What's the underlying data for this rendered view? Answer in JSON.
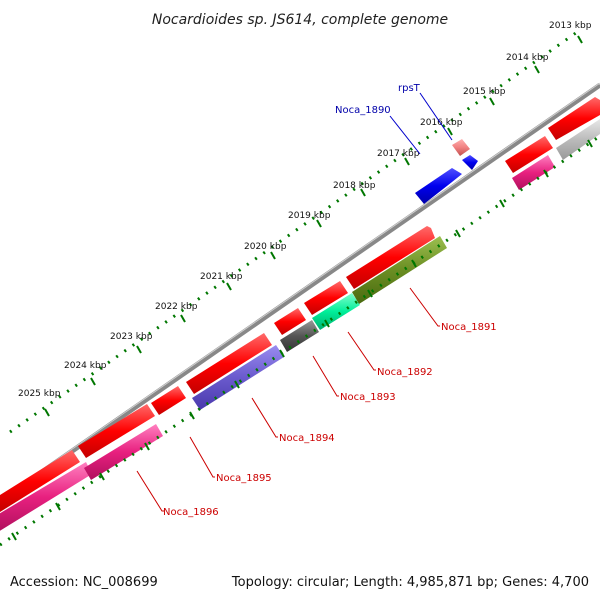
{
  "title": "Nocardioides sp. JS614, complete genome",
  "footer": {
    "accession": "Accession: NC_008699",
    "summary": "Topology: circular; Length: 4,985,871 bp; Genes: 4,700"
  },
  "kbp_labels": [
    "2013 kbp",
    "2014 kbp",
    "2015 kbp",
    "2016 kbp",
    "2017 kbp",
    "2018 kbp",
    "2019 kbp",
    "2020 kbp",
    "2021 kbp",
    "2022 kbp",
    "2023 kbp",
    "2024 kbp",
    "2025 kbp"
  ],
  "gene_labels": {
    "rpsT": "rpsT",
    "noca_1890": "Noca_1890",
    "noca_1891": "Noca_1891",
    "noca_1892": "Noca_1892",
    "noca_1893": "Noca_1893",
    "noca_1894": "Noca_1894",
    "noca_1895": "Noca_1895",
    "noca_1896": "Noca_1896"
  },
  "colors": {
    "cds_red": "#ff0000",
    "blue": "#0000ee",
    "pink": "#e8207f",
    "purple": "#6a5acd",
    "olive": "#6b8e23",
    "mint": "#00ee99",
    "dark_grey": "#555555",
    "light_grey": "#bbbbbb",
    "salmon": "#f08080",
    "backbone": "#888888",
    "tick": "#007700",
    "label_red": "#cc0000",
    "label_blue": "#0000aa"
  }
}
